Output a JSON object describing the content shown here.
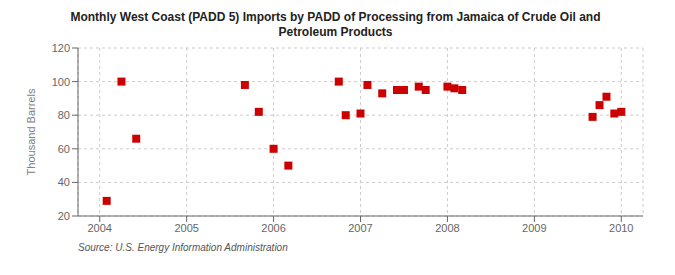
{
  "chart_data": {
    "type": "scatter",
    "title": "Monthly West Coast (PADD 5) Imports by PADD of Processing from Jamaica of Crude Oil and\nPetroleum Products",
    "ylabel": "Thousand Barrels",
    "source": "Source: U.S. Energy Information Administration",
    "x": [
      2004.08,
      2004.25,
      2004.42,
      2005.67,
      2005.83,
      2006.0,
      2006.17,
      2006.75,
      2006.83,
      2007.0,
      2007.08,
      2007.25,
      2007.42,
      2007.5,
      2007.67,
      2007.75,
      2008.0,
      2008.08,
      2008.17,
      2009.67,
      2009.75,
      2009.83,
      2009.92,
      2010.0
    ],
    "values": [
      29,
      100,
      66,
      98,
      82,
      60,
      50,
      100,
      80,
      81,
      98,
      93,
      95,
      95,
      97,
      95,
      97,
      96,
      95,
      79,
      86,
      91,
      81,
      82
    ],
    "color": "#cc0000",
    "marker": "square",
    "xlim": [
      2003.75,
      2010.25
    ],
    "ylim": [
      20,
      120
    ],
    "xticks": [
      2004,
      2005,
      2006,
      2007,
      2008,
      2009,
      2010
    ],
    "yticks": [
      20,
      40,
      60,
      80,
      100,
      120
    ],
    "grid": true
  }
}
